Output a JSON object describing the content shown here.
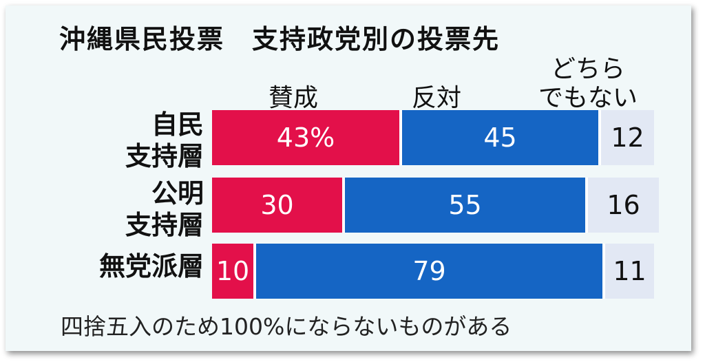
{
  "chart_data": {
    "type": "bar",
    "orientation": "horizontal-stacked",
    "title": "沖縄県民投票　支持政党別の投票先",
    "categories": [
      {
        "lines": [
          "自民",
          "支持層"
        ]
      },
      {
        "lines": [
          "公明",
          "支持層"
        ]
      },
      {
        "lines": [
          "無党派層"
        ]
      }
    ],
    "series": [
      {
        "name": "賛成",
        "color": "#e3104a",
        "values": [
          43,
          30,
          10
        ],
        "labels": [
          "43%",
          "30",
          "10"
        ]
      },
      {
        "name": "反対",
        "color": "#1565c4",
        "values": [
          45,
          55,
          79
        ],
        "labels": [
          "45",
          "55",
          "79"
        ]
      },
      {
        "name": "どちらでもない",
        "name_lines": [
          "どちら",
          "でもない"
        ],
        "color": "#e2e8f4",
        "values": [
          12,
          16,
          11
        ],
        "labels": [
          "12",
          "16",
          "11"
        ]
      }
    ],
    "legend_placement": "top, above the bars",
    "grid": false,
    "footnote": "四捨五入のため100%にならないものがある"
  }
}
